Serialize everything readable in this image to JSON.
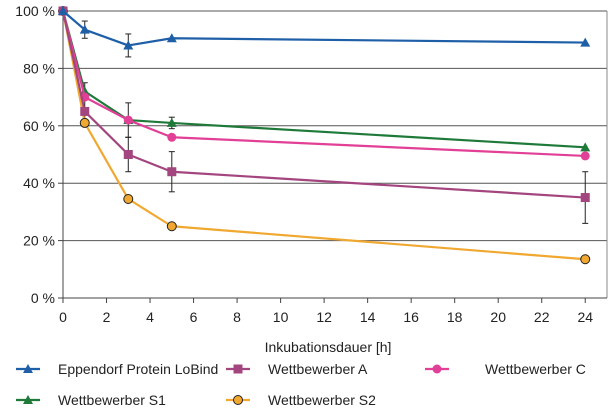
{
  "chart_data": {
    "type": "line",
    "xlabel": "Inkubationsdauer [h]",
    "ylabel": "",
    "xlim": [
      0,
      25
    ],
    "ylim": [
      0,
      100
    ],
    "x_ticks": [
      0,
      2,
      4,
      6,
      8,
      10,
      12,
      14,
      16,
      18,
      20,
      22,
      24
    ],
    "y_ticks": [
      0,
      20,
      40,
      60,
      80,
      100
    ],
    "y_tick_labels": [
      "0 %",
      "20 %",
      "40 %",
      "60 %",
      "80 %",
      "100 %"
    ],
    "grid": "horizontal",
    "legend_position": "bottom",
    "series": [
      {
        "name": "Eppendorf Protein LoBind",
        "color": "#1f5fa8",
        "marker": "triangle",
        "x": [
          0,
          1,
          3,
          5,
          24
        ],
        "y": [
          100,
          93.5,
          88,
          90.5,
          89
        ],
        "err": [
          0,
          3,
          4,
          0,
          0
        ]
      },
      {
        "name": "Wettbewerber A",
        "color": "#a3457e",
        "marker": "square",
        "x": [
          0,
          1,
          3,
          5,
          24
        ],
        "y": [
          100,
          65,
          50,
          44,
          35
        ],
        "err": [
          0,
          4,
          6,
          7,
          9
        ]
      },
      {
        "name": "Wettbewerber C",
        "color": "#e23f96",
        "marker": "circle",
        "x": [
          0,
          1,
          3,
          5,
          24
        ],
        "y": [
          100,
          70,
          62,
          56,
          49.5
        ],
        "err": [
          0,
          0,
          0,
          0,
          0
        ]
      },
      {
        "name": "Wettbewerber S1",
        "color": "#1f7a3a",
        "marker": "triangle",
        "x": [
          0,
          1,
          3,
          5,
          24
        ],
        "y": [
          100,
          72,
          62,
          61,
          52.5
        ],
        "err": [
          0,
          3,
          6,
          2,
          0
        ]
      },
      {
        "name": "Wettbewerber S2",
        "color": "#f0a830",
        "marker": "circle-outlined",
        "x": [
          0,
          1,
          3,
          5,
          24
        ],
        "y": [
          100,
          61,
          34.5,
          25,
          13.5
        ],
        "err": [
          0,
          0,
          0,
          0,
          0
        ]
      }
    ]
  }
}
